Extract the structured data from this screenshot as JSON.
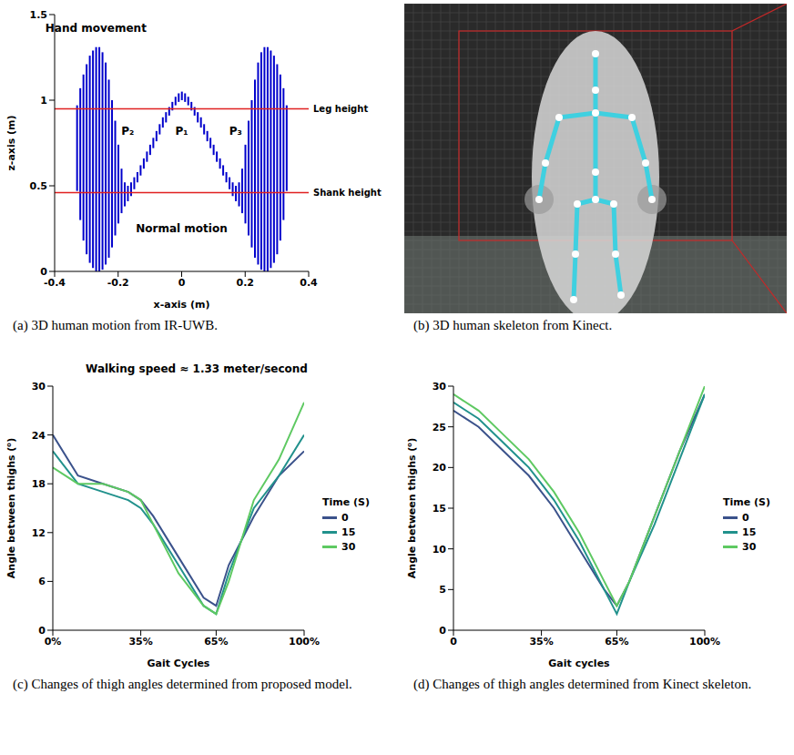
{
  "chart_data": [
    {
      "type": "range_bar",
      "caption": "(a) 3D human motion from IR-UWB.",
      "x_label": "x-axis (m)",
      "y_label": "z-axis (m)",
      "color": "#0000cc",
      "xlim": [
        -0.4,
        0.4
      ],
      "xticks": [
        -0.4,
        -0.2,
        0,
        0.2,
        0.4
      ],
      "ylim": [
        0,
        1.5
      ],
      "yticks": [
        0,
        0.5,
        1,
        1.5
      ],
      "x": [
        -0.33,
        -0.32,
        -0.31,
        -0.3,
        -0.29,
        -0.28,
        -0.27,
        -0.26,
        -0.25,
        -0.24,
        -0.23,
        -0.22,
        -0.21,
        -0.2,
        -0.19,
        -0.18,
        -0.17,
        -0.16,
        -0.15,
        -0.14,
        -0.13,
        -0.12,
        -0.11,
        -0.1,
        -0.09,
        -0.08,
        -0.07,
        -0.06,
        -0.05,
        -0.04,
        -0.03,
        -0.02,
        -0.01,
        0,
        0.01,
        0.02,
        0.03,
        0.04,
        0.05,
        0.06,
        0.07,
        0.08,
        0.09,
        0.1,
        0.11,
        0.12,
        0.13,
        0.14,
        0.15,
        0.16,
        0.17,
        0.18,
        0.19,
        0.2,
        0.21,
        0.22,
        0.23,
        0.24,
        0.25,
        0.26,
        0.27,
        0.28,
        0.29,
        0.3,
        0.31,
        0.32,
        0.33
      ],
      "low": [
        0.47,
        0.3,
        0.18,
        0.1,
        0.05,
        0.02,
        0,
        0,
        0.01,
        0.04,
        0.08,
        0.14,
        0.21,
        0.28,
        0.34,
        0.38,
        0.41,
        0.44,
        0.48,
        0.52,
        0.56,
        0.6,
        0.64,
        0.68,
        0.72,
        0.76,
        0.8,
        0.84,
        0.87,
        0.91,
        0.94,
        0.97,
        0.99,
        1.0,
        0.99,
        0.97,
        0.94,
        0.91,
        0.87,
        0.84,
        0.8,
        0.76,
        0.72,
        0.68,
        0.64,
        0.6,
        0.56,
        0.52,
        0.48,
        0.44,
        0.41,
        0.38,
        0.34,
        0.28,
        0.21,
        0.14,
        0.08,
        0.04,
        0.01,
        0,
        0,
        0.02,
        0.05,
        0.1,
        0.18,
        0.3,
        0.47
      ],
      "high": [
        0.97,
        1.07,
        1.15,
        1.21,
        1.26,
        1.29,
        1.31,
        1.31,
        1.28,
        1.22,
        1.12,
        1.0,
        0.88,
        0.74,
        0.6,
        0.52,
        0.5,
        0.52,
        0.55,
        0.58,
        0.62,
        0.66,
        0.7,
        0.74,
        0.78,
        0.82,
        0.86,
        0.9,
        0.93,
        0.96,
        0.99,
        1.02,
        1.04,
        1.05,
        1.04,
        1.02,
        0.99,
        0.96,
        0.93,
        0.9,
        0.86,
        0.82,
        0.78,
        0.74,
        0.7,
        0.66,
        0.62,
        0.58,
        0.55,
        0.52,
        0.5,
        0.52,
        0.6,
        0.74,
        0.88,
        1.0,
        1.12,
        1.22,
        1.28,
        1.31,
        1.31,
        1.29,
        1.26,
        1.21,
        1.15,
        1.07,
        0.97
      ],
      "reference_lines": [
        {
          "y": 0.95,
          "label": "Leg height",
          "color": "#e02020"
        },
        {
          "y": 0.46,
          "label": "Shank height",
          "color": "#e02020"
        }
      ],
      "annotations": [
        {
          "text": "Hand movement",
          "x": -0.27,
          "y": 1.42
        },
        {
          "text": "P₂",
          "x": -0.17,
          "y": 0.82
        },
        {
          "text": "P₁",
          "x": 0,
          "y": 0.82
        },
        {
          "text": "P₃",
          "x": 0.17,
          "y": 0.82
        },
        {
          "text": "Normal motion",
          "x": 0,
          "y": 0.25
        }
      ]
    },
    {
      "type": "image",
      "caption": "(b) 3D human skeleton from Kinect."
    },
    {
      "type": "line",
      "caption": "(c) Changes of thigh angles determined from proposed model.",
      "title": "Walking speed ≈ 1.33 meter/second",
      "x_label": "Gait Cycles",
      "y_label": "Angle between thighs (⁰)",
      "legend_title": "Time (S)",
      "legend": "right",
      "xlim": [
        0,
        100
      ],
      "xticks": [
        {
          "value": 0,
          "label": "0%"
        },
        {
          "value": 35,
          "label": "35%"
        },
        {
          "value": 65,
          "label": "65%"
        },
        {
          "value": 100,
          "label": "100%"
        }
      ],
      "ylim": [
        0,
        30
      ],
      "yticks": [
        0,
        6,
        12,
        18,
        24,
        30
      ],
      "x": [
        0,
        10,
        20,
        30,
        35,
        40,
        50,
        60,
        65,
        70,
        80,
        90,
        100
      ],
      "series": [
        {
          "name": "0",
          "color": "#3b528b",
          "values": [
            24,
            19,
            18,
            17,
            16,
            14,
            9,
            4,
            3,
            8,
            14,
            19,
            22
          ]
        },
        {
          "name": "15",
          "color": "#21918c",
          "values": [
            22,
            18,
            17,
            16,
            15,
            13,
            8,
            3,
            2,
            7,
            15,
            19,
            24
          ]
        },
        {
          "name": "30",
          "color": "#5ec962",
          "values": [
            20,
            18,
            18,
            17,
            16,
            13,
            7,
            3,
            2,
            6,
            16,
            21,
            28
          ]
        }
      ]
    },
    {
      "type": "line",
      "caption": "(d) Changes of thigh angles determined from Kinect skeleton.",
      "x_label": "Gait cycles",
      "y_label": "Angle between thighs (⁰)",
      "legend_title": "Time (S)",
      "legend": "right",
      "xlim": [
        0,
        100
      ],
      "xticks": [
        0,
        {
          "value": 35,
          "label": "35%"
        },
        {
          "value": 65,
          "label": "65%"
        },
        {
          "value": 100,
          "label": "100%"
        }
      ],
      "ylim": [
        0,
        30
      ],
      "yticks": [
        0,
        5,
        10,
        15,
        20,
        25,
        30
      ],
      "x": [
        0,
        10,
        20,
        30,
        35,
        40,
        50,
        60,
        65,
        70,
        80,
        90,
        100
      ],
      "series": [
        {
          "name": "0",
          "color": "#3b528b",
          "values": [
            27,
            25,
            22,
            19,
            17,
            15,
            10,
            5,
            3,
            6,
            14,
            22,
            29
          ]
        },
        {
          "name": "15",
          "color": "#21918c",
          "values": [
            28,
            26,
            23,
            20,
            18,
            16,
            11,
            5,
            2,
            6,
            13,
            21,
            29
          ]
        },
        {
          "name": "30",
          "color": "#5ec962",
          "values": [
            29,
            27,
            24,
            21,
            19,
            17,
            12,
            6,
            3,
            6,
            14,
            22,
            30
          ]
        }
      ]
    }
  ]
}
